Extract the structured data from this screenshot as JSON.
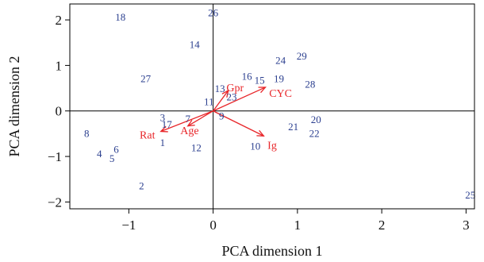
{
  "chart_data": {
    "type": "scatter",
    "xlabel": "PCA dimension 1",
    "ylabel": "PCA dimension 2",
    "xlim": [
      -1.7,
      3.1
    ],
    "ylim": [
      -2.15,
      2.35
    ],
    "xticks": [
      -1,
      0,
      1,
      2,
      3
    ],
    "xtick_labels": [
      "−1",
      "0",
      "1",
      "2",
      "3"
    ],
    "yticks": [
      -2,
      -1,
      0,
      1,
      2
    ],
    "ytick_labels": [
      "−2",
      "−1",
      "0",
      "1",
      "2"
    ],
    "zero_lines": true,
    "colors": {
      "observations": "#2b3f8f",
      "variables": "#e8262a",
      "axes": "#000000"
    },
    "observations": [
      {
        "label": "1",
        "x": -0.6,
        "y": -0.7
      },
      {
        "label": "2",
        "x": -0.85,
        "y": -1.65
      },
      {
        "label": "3",
        "x": -0.6,
        "y": -0.15
      },
      {
        "label": "4",
        "x": -1.35,
        "y": -0.95
      },
      {
        "label": "5",
        "x": -1.2,
        "y": -1.05
      },
      {
        "label": "6",
        "x": -1.15,
        "y": -0.85
      },
      {
        "label": "7",
        "x": -0.3,
        "y": -0.18
      },
      {
        "label": "8",
        "x": -1.5,
        "y": -0.5
      },
      {
        "label": "9",
        "x": 0.1,
        "y": -0.12
      },
      {
        "label": "10",
        "x": 0.5,
        "y": -0.78
      },
      {
        "label": "11",
        "x": -0.05,
        "y": 0.2
      },
      {
        "label": "12",
        "x": -0.2,
        "y": -0.82
      },
      {
        "label": "13",
        "x": 0.08,
        "y": 0.48
      },
      {
        "label": "14",
        "x": -0.22,
        "y": 1.45
      },
      {
        "label": "15",
        "x": 0.55,
        "y": 0.67
      },
      {
        "label": "16",
        "x": 0.4,
        "y": 0.75
      },
      {
        "label": "17",
        "x": -0.55,
        "y": -0.3
      },
      {
        "label": "18",
        "x": -1.1,
        "y": 2.05
      },
      {
        "label": "19",
        "x": 0.78,
        "y": 0.7
      },
      {
        "label": "20",
        "x": 1.22,
        "y": -0.2
      },
      {
        "label": "21",
        "x": 0.95,
        "y": -0.35
      },
      {
        "label": "22",
        "x": 1.2,
        "y": -0.5
      },
      {
        "label": "23",
        "x": 0.22,
        "y": 0.3
      },
      {
        "label": "24",
        "x": 0.8,
        "y": 1.1
      },
      {
        "label": "25",
        "x": 3.05,
        "y": -1.85
      },
      {
        "label": "26",
        "x": 0.0,
        "y": 2.15
      },
      {
        "label": "27",
        "x": -0.8,
        "y": 0.7
      },
      {
        "label": "28",
        "x": 1.15,
        "y": 0.58
      },
      {
        "label": "29",
        "x": 1.05,
        "y": 1.2
      }
    ],
    "variables": [
      {
        "label": "Gpr",
        "x": 0.18,
        "y": 0.45
      },
      {
        "label": "CYC",
        "x": 0.62,
        "y": 0.52
      },
      {
        "label": "Ig",
        "x": 0.6,
        "y": -0.55
      },
      {
        "label": "Age",
        "x": -0.3,
        "y": -0.33
      },
      {
        "label": "Rat",
        "x": -0.62,
        "y": -0.45
      }
    ],
    "variable_label_positions": {
      "Gpr": {
        "x": 0.26,
        "y": 0.52
      },
      "CYC": {
        "x": 0.8,
        "y": 0.4
      },
      "Ig": {
        "x": 0.7,
        "y": -0.75
      },
      "Age": {
        "x": -0.28,
        "y": -0.42
      },
      "Rat": {
        "x": -0.78,
        "y": -0.52
      }
    }
  }
}
